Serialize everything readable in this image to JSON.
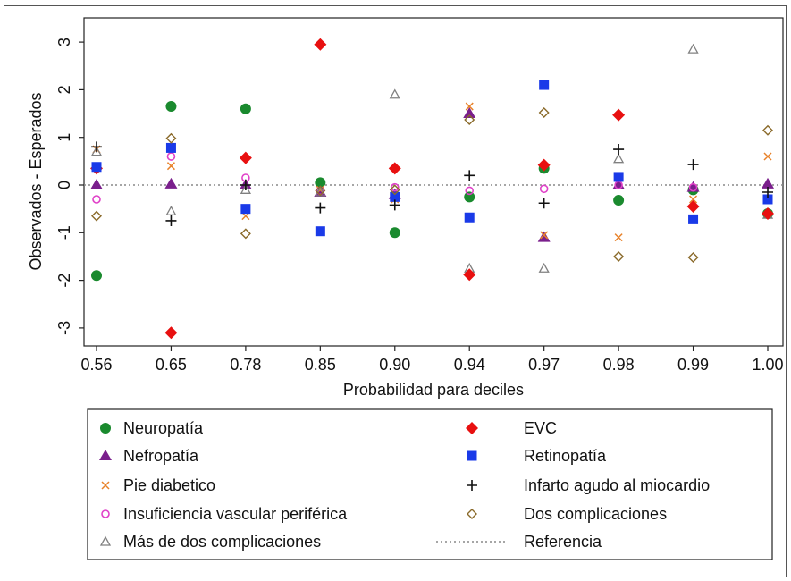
{
  "chart_data": {
    "type": "scatter",
    "xlabel": "Probabilidad para deciles",
    "ylabel": "Observados - Esperados",
    "categories": [
      "0.56",
      "0.65",
      "0.78",
      "0.85",
      "0.90",
      "0.94",
      "0.97",
      "0.98",
      "0.99",
      "1.00"
    ],
    "ylim": [
      -3.3,
      3.3
    ],
    "yticks": [
      -3,
      -2,
      -1,
      0,
      1,
      2,
      3
    ],
    "reference_line": 0,
    "legend_position": "bottom",
    "series": [
      {
        "name": "Neuropatía",
        "marker": "circle",
        "color": "#1a8a2e",
        "values": [
          -1.9,
          1.65,
          1.6,
          0.05,
          -1.0,
          -0.25,
          0.35,
          -0.32,
          -0.1,
          -0.6
        ]
      },
      {
        "name": "Nefropatía",
        "marker": "triangle",
        "color": "#7a1f8c",
        "values": [
          0.0,
          0.02,
          0.0,
          -0.15,
          -0.2,
          1.5,
          -1.1,
          0.0,
          -0.05,
          0.02
        ]
      },
      {
        "name": "Pie diabetico",
        "marker": "x",
        "color": "#e8822a",
        "values": [
          0.75,
          0.4,
          -0.65,
          -0.1,
          -0.3,
          1.65,
          -1.05,
          -1.1,
          -0.3,
          0.6
        ]
      },
      {
        "name": "Insuficiencia vascular periférica",
        "marker": "ring",
        "color": "#e040c8",
        "values": [
          -0.3,
          0.6,
          0.15,
          -0.12,
          -0.05,
          -0.12,
          -0.08,
          0.0,
          -0.05,
          -0.6
        ]
      },
      {
        "name": "Más de dos complicaciones",
        "marker": "open-triangle",
        "color": "#808080",
        "values": [
          0.7,
          -0.55,
          -0.1,
          -0.15,
          1.9,
          -1.75,
          -1.75,
          0.55,
          2.85,
          -0.62
        ]
      },
      {
        "name": "EVC",
        "marker": "diamond",
        "color": "#e81010",
        "values": [
          0.35,
          -3.1,
          0.57,
          2.95,
          0.35,
          -1.88,
          0.42,
          1.47,
          -0.45,
          -0.6
        ]
      },
      {
        "name": "Retinopatía",
        "marker": "square",
        "color": "#1a3ae8",
        "values": [
          0.38,
          0.78,
          -0.5,
          -0.97,
          -0.25,
          -0.68,
          2.1,
          0.17,
          -0.72,
          -0.3
        ]
      },
      {
        "name": "Infarto agudo al miocardio",
        "marker": "plus",
        "color": "#111111",
        "values": [
          0.8,
          -0.75,
          0.0,
          -0.48,
          -0.42,
          0.2,
          -0.38,
          0.75,
          0.43,
          -0.15
        ]
      },
      {
        "name": "Dos complicaciones",
        "marker": "open-diamond",
        "color": "#8a6a2a",
        "values": [
          -0.65,
          0.98,
          -1.02,
          -0.12,
          -0.1,
          1.37,
          1.52,
          -1.5,
          -1.52,
          1.15
        ]
      }
    ],
    "legend": [
      {
        "label": "Neuropatía",
        "marker": "circle",
        "color": "#1a8a2e"
      },
      {
        "label": "EVC",
        "marker": "diamond",
        "color": "#e81010"
      },
      {
        "label": "Nefropatía",
        "marker": "triangle",
        "color": "#7a1f8c"
      },
      {
        "label": "Retinopatía",
        "marker": "square",
        "color": "#1a3ae8"
      },
      {
        "label": "Pie diabetico",
        "marker": "x",
        "color": "#e8822a"
      },
      {
        "label": "Infarto agudo al miocardio",
        "marker": "plus",
        "color": "#111111"
      },
      {
        "label": "Insuficiencia vascular periférica",
        "marker": "ring",
        "color": "#e040c8"
      },
      {
        "label": "Dos complicaciones",
        "marker": "open-diamond",
        "color": "#8a6a2a"
      },
      {
        "label": "Más de dos complicaciones",
        "marker": "open-triangle",
        "color": "#808080"
      },
      {
        "label": "Referencia",
        "marker": "dotted-line",
        "color": "#888888"
      }
    ]
  }
}
